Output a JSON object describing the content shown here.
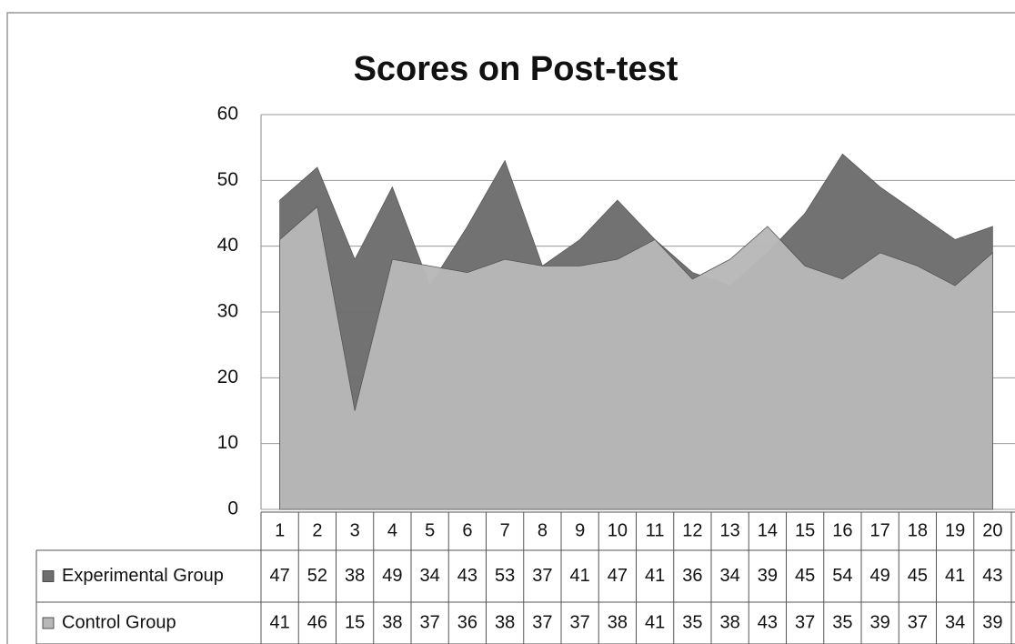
{
  "chart_data": {
    "type": "area",
    "title": "Scores on Post-test",
    "categories": [
      "1",
      "2",
      "3",
      "4",
      "5",
      "6",
      "7",
      "8",
      "9",
      "10",
      "11",
      "12",
      "13",
      "14",
      "15",
      "16",
      "17",
      "18",
      "19",
      "20"
    ],
    "series": [
      {
        "name": "Experimental Group",
        "color": "#6e6e6e",
        "values": [
          47,
          52,
          38,
          49,
          34,
          43,
          53,
          37,
          41,
          47,
          41,
          36,
          34,
          39,
          45,
          54,
          49,
          45,
          41,
          43
        ]
      },
      {
        "name": "Control Group",
        "color": "#b8b8b8",
        "values": [
          41,
          46,
          15,
          38,
          37,
          36,
          38,
          37,
          37,
          38,
          41,
          35,
          38,
          43,
          37,
          35,
          39,
          37,
          34,
          39
        ]
      }
    ],
    "ylim": [
      0,
      60
    ],
    "yticks": [
      0,
      10,
      20,
      30,
      40,
      50,
      60
    ],
    "grid": true
  }
}
